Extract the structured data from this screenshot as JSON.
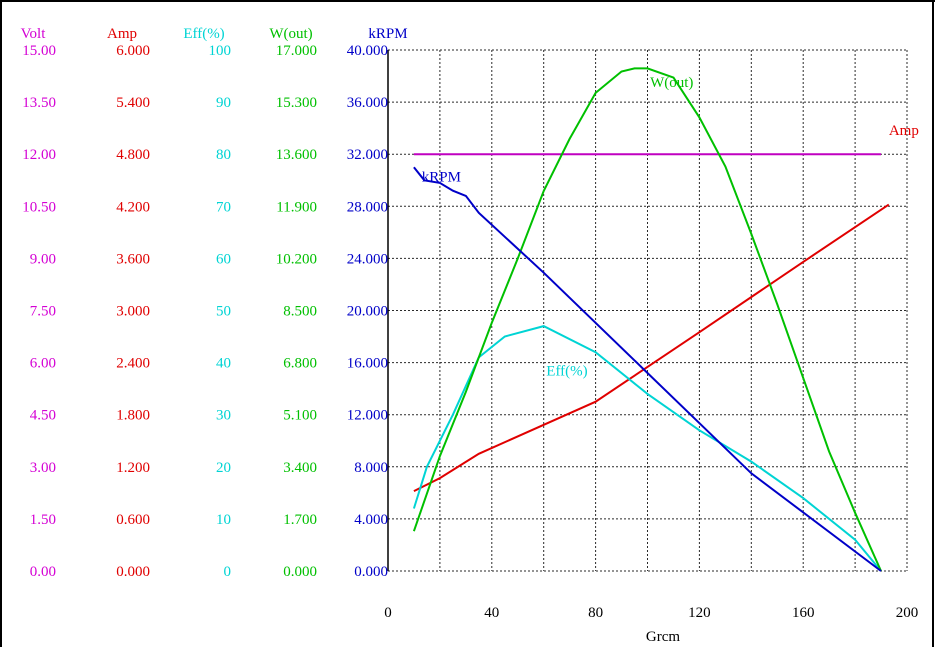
{
  "chart_data": {
    "type": "line",
    "title": "",
    "xlabel": "Grcm",
    "xlim": [
      0,
      200
    ],
    "x_ticks": [
      "0",
      "40",
      "80",
      "120",
      "160",
      "200"
    ],
    "grid": true,
    "axes": [
      {
        "name": "Volt",
        "color": "#d400d4",
        "range": [
          0,
          15
        ],
        "ticks": [
          "0.00",
          "1.50",
          "3.00",
          "4.50",
          "6.00",
          "7.50",
          "9.00",
          "10.50",
          "12.00",
          "13.50",
          "15.00"
        ]
      },
      {
        "name": "Amp",
        "color": "#e00000",
        "range": [
          0,
          6
        ],
        "ticks": [
          "0.000",
          "0.600",
          "1.200",
          "1.800",
          "2.400",
          "3.000",
          "3.600",
          "4.200",
          "4.800",
          "5.400",
          "6.000"
        ]
      },
      {
        "name": "Eff(%)",
        "color": "#00d4d4",
        "range": [
          0,
          100
        ],
        "ticks": [
          "0",
          "10",
          "20",
          "30",
          "40",
          "50",
          "60",
          "70",
          "80",
          "90",
          "100"
        ]
      },
      {
        "name": "W(out)",
        "color": "#00c000",
        "range": [
          0,
          17
        ],
        "ticks": [
          "0.000",
          "1.700",
          "3.400",
          "5.100",
          "6.800",
          "8.500",
          "10.200",
          "11.900",
          "13.600",
          "15.300",
          "17.000"
        ]
      },
      {
        "name": "kRPM",
        "color": "#0000c8",
        "range": [
          0,
          40
        ],
        "ticks": [
          "0.000",
          "4.000",
          "8.000",
          "12.000",
          "16.000",
          "20.000",
          "24.000",
          "28.000",
          "32.000",
          "36.000",
          "40.000"
        ]
      }
    ],
    "series": [
      {
        "name": "Volt",
        "axis": 0,
        "color": "#c000c0",
        "x": [
          10,
          190
        ],
        "y": [
          12.0,
          12.0
        ]
      },
      {
        "name": "Amp",
        "axis": 1,
        "color": "#e00000",
        "x": [
          10,
          20,
          35,
          80,
          120,
          160,
          193
        ],
        "y": [
          0.92,
          1.07,
          1.35,
          1.95,
          2.75,
          3.56,
          4.22
        ]
      },
      {
        "name": "Eff(%)",
        "axis": 2,
        "color": "#00d4d4",
        "x": [
          10,
          15,
          25,
          35,
          45,
          60,
          80,
          100,
          120,
          140,
          160,
          180,
          190
        ],
        "y": [
          12,
          20,
          30,
          41,
          45,
          47,
          42,
          34,
          27,
          21,
          14,
          6,
          0
        ]
      },
      {
        "name": "W(out)",
        "axis": 3,
        "color": "#00c000",
        "x": [
          10,
          20,
          30,
          40,
          50,
          60,
          70,
          80,
          90,
          95,
          100,
          110,
          120,
          130,
          140,
          150,
          160,
          170,
          180,
          190
        ],
        "y": [
          1.3,
          3.75,
          5.85,
          8.1,
          10.2,
          12.4,
          14.1,
          15.6,
          16.3,
          16.4,
          16.4,
          16.1,
          14.8,
          13.2,
          11.0,
          8.7,
          6.3,
          3.9,
          1.9,
          0.0
        ]
      },
      {
        "name": "kRPM",
        "axis": 4,
        "color": "#0000c8",
        "x": [
          10,
          14,
          20,
          25,
          30,
          35,
          60,
          100,
          140,
          190
        ],
        "y": [
          31.0,
          30.0,
          29.8,
          29.2,
          28.8,
          27.5,
          22.9,
          15.2,
          7.5,
          0
        ]
      }
    ],
    "annotations": [
      {
        "text": "W(out)",
        "x": 101,
        "y": 15.8,
        "axis": 3,
        "color": "#00c000"
      },
      {
        "text": "Amp",
        "x": 193,
        "y": 5.02,
        "axis": 1,
        "color": "#e00000"
      },
      {
        "text": "Eff(%)",
        "x": 61,
        "y": 37.5,
        "axis": 2,
        "color": "#00d4d4"
      },
      {
        "text": "kRPM",
        "x": 13,
        "y": 29.9,
        "axis": 4,
        "color": "#0000c8"
      }
    ]
  }
}
